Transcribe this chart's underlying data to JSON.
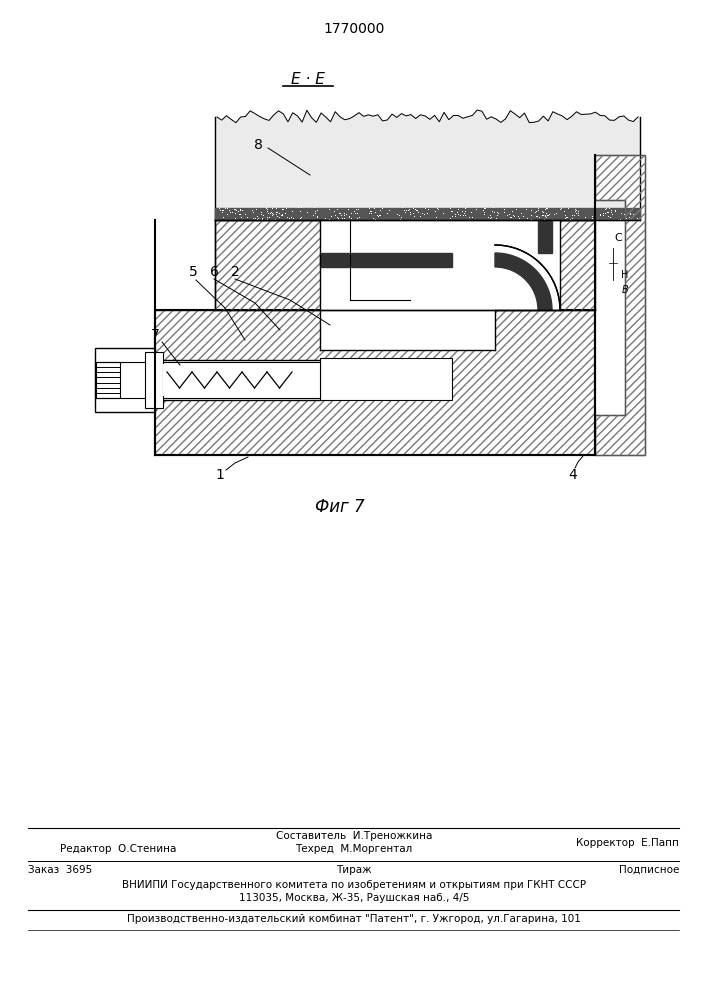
{
  "patent_number": "1770000",
  "bg_color": "#ffffff",
  "lc": "#000000",
  "footer": {
    "composer": "Составитель  И.Треножкина",
    "editor": "Редактор  О.Стенина",
    "techred": "Техред  М.Моргентал",
    "corrector": "Корректор  Е.Папп",
    "order": "Заказ  3695",
    "tirazh": "Тираж",
    "podpisnoe": "Подписное",
    "vniip1": "ВНИИПИ Государственного комитета по изобретениям и открытиям при ГКНТ СССР",
    "vniip2": "113035, Москва, Ж-35, Раушская наб., 4/5",
    "production": "Производственно-издательский комбинат \"Патент\", г. Ужгород, ул.Гагарина, 101"
  }
}
